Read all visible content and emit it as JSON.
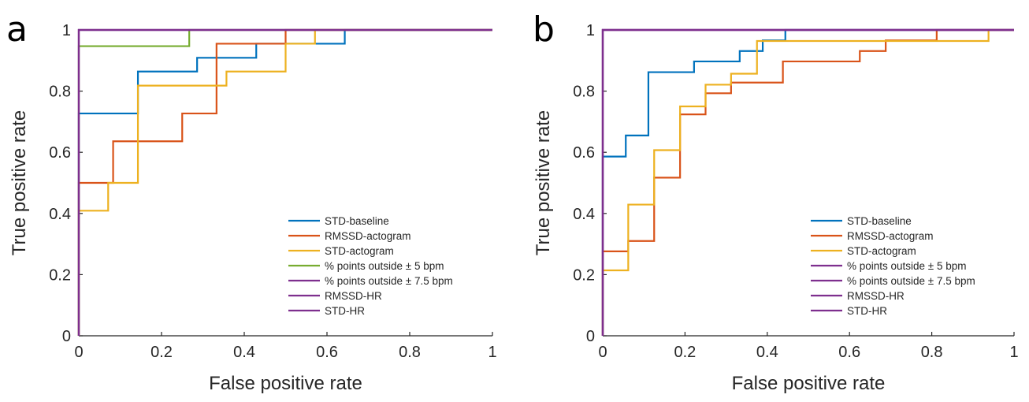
{
  "chart_data": [
    {
      "panel_label": "a",
      "type": "line",
      "xlabel": "False positive rate",
      "ylabel": "True positive rate",
      "xlim": [
        0,
        1
      ],
      "ylim": [
        0,
        1
      ],
      "xticks": [
        "0",
        "0.2",
        "0.4",
        "0.6",
        "0.8",
        "1"
      ],
      "yticks": [
        "0",
        "0.2",
        "0.4",
        "0.6",
        "0.8",
        "1"
      ],
      "grid": false,
      "legend_position": "bottom-right",
      "series": [
        {
          "name": "STD-baseline",
          "color": "#0072BD",
          "x": [
            0,
            0,
            0.143,
            0.143,
            0.286,
            0.286,
            0.429,
            0.429,
            0.5,
            0.5,
            0.571,
            0.571,
            0.643,
            0.643,
            1
          ],
          "y": [
            0,
            0.727,
            0.727,
            0.864,
            0.864,
            0.909,
            0.909,
            0.955,
            0.955,
            0.955,
            0.955,
            0.955,
            0.955,
            1,
            1
          ]
        },
        {
          "name": "RMSSD-actogram",
          "color": "#D95319",
          "x": [
            0,
            0,
            0.083,
            0.083,
            0.25,
            0.25,
            0.333,
            0.333,
            0.5,
            0.5,
            1
          ],
          "y": [
            0,
            0.5,
            0.5,
            0.636,
            0.636,
            0.727,
            0.727,
            0.955,
            0.955,
            1,
            1
          ]
        },
        {
          "name": "STD-actogram",
          "color": "#EDB120",
          "x": [
            0,
            0,
            0.071,
            0.071,
            0.143,
            0.143,
            0.357,
            0.357,
            0.5,
            0.5,
            0.571,
            0.571,
            1
          ],
          "y": [
            0,
            0.409,
            0.409,
            0.5,
            0.5,
            0.818,
            0.818,
            0.864,
            0.864,
            0.955,
            0.955,
            1,
            1
          ]
        },
        {
          "name": "% points outside ± 5 bpm",
          "color": "#77AC30",
          "x": [
            0,
            0,
            0.267,
            0.267,
            1
          ],
          "y": [
            0,
            0.947,
            0.947,
            1,
            1
          ]
        },
        {
          "name": "% points outside ± 7.5 bpm",
          "color": "#7E2F8E",
          "x": [
            0,
            0,
            1
          ],
          "y": [
            0,
            1,
            1
          ]
        },
        {
          "name": "RMSSD-HR",
          "color": "#7E2F8E",
          "x": [
            0,
            0,
            1
          ],
          "y": [
            0,
            1,
            1
          ]
        },
        {
          "name": "STD-HR",
          "color": "#7E2F8E",
          "x": [
            0,
            0,
            1
          ],
          "y": [
            0,
            1,
            1
          ]
        }
      ]
    },
    {
      "panel_label": "b",
      "type": "line",
      "xlabel": "False positive rate",
      "ylabel": "True positive rate",
      "xlim": [
        0,
        1
      ],
      "ylim": [
        0,
        1
      ],
      "xticks": [
        "0",
        "0.2",
        "0.4",
        "0.6",
        "0.8",
        "1"
      ],
      "yticks": [
        "0",
        "0.2",
        "0.4",
        "0.6",
        "0.8",
        "1"
      ],
      "grid": false,
      "legend_position": "bottom-right",
      "series": [
        {
          "name": "STD-baseline",
          "color": "#0072BD",
          "x": [
            0,
            0,
            0.056,
            0.056,
            0.111,
            0.111,
            0.222,
            0.222,
            0.333,
            0.333,
            0.389,
            0.389,
            0.444,
            0.444,
            1
          ],
          "y": [
            0,
            0.586,
            0.586,
            0.655,
            0.655,
            0.862,
            0.862,
            0.897,
            0.897,
            0.931,
            0.931,
            0.966,
            0.966,
            1,
            1
          ]
        },
        {
          "name": "RMSSD-actogram",
          "color": "#D95319",
          "x": [
            0,
            0,
            0.062,
            0.062,
            0.125,
            0.125,
            0.188,
            0.188,
            0.25,
            0.25,
            0.312,
            0.312,
            0.438,
            0.438,
            0.625,
            0.625,
            0.688,
            0.688,
            0.812,
            0.812,
            1
          ],
          "y": [
            0,
            0.276,
            0.276,
            0.31,
            0.31,
            0.517,
            0.517,
            0.724,
            0.724,
            0.793,
            0.793,
            0.828,
            0.828,
            0.897,
            0.897,
            0.931,
            0.931,
            0.966,
            0.966,
            1,
            1
          ]
        },
        {
          "name": "STD-actogram",
          "color": "#EDB120",
          "x": [
            0,
            0,
            0.062,
            0.062,
            0.125,
            0.125,
            0.188,
            0.188,
            0.25,
            0.25,
            0.312,
            0.312,
            0.375,
            0.375,
            0.938,
            0.938,
            1
          ],
          "y": [
            0,
            0.214,
            0.214,
            0.429,
            0.429,
            0.607,
            0.607,
            0.75,
            0.75,
            0.821,
            0.821,
            0.857,
            0.857,
            0.964,
            0.964,
            1,
            1
          ]
        },
        {
          "name": "% points outside ± 5 bpm",
          "color": "#7E2F8E",
          "x": [
            0,
            0,
            1
          ],
          "y": [
            0,
            1,
            1
          ]
        },
        {
          "name": "% points outside ± 7.5 bpm",
          "color": "#7E2F8E",
          "x": [
            0,
            0,
            1
          ],
          "y": [
            0,
            1,
            1
          ]
        },
        {
          "name": "RMSSD-HR",
          "color": "#7E2F8E",
          "x": [
            0,
            0,
            1
          ],
          "y": [
            0,
            1,
            1
          ]
        },
        {
          "name": "STD-HR",
          "color": "#7E2F8E",
          "x": [
            0,
            0,
            1
          ],
          "y": [
            0,
            1,
            1
          ]
        }
      ]
    }
  ]
}
